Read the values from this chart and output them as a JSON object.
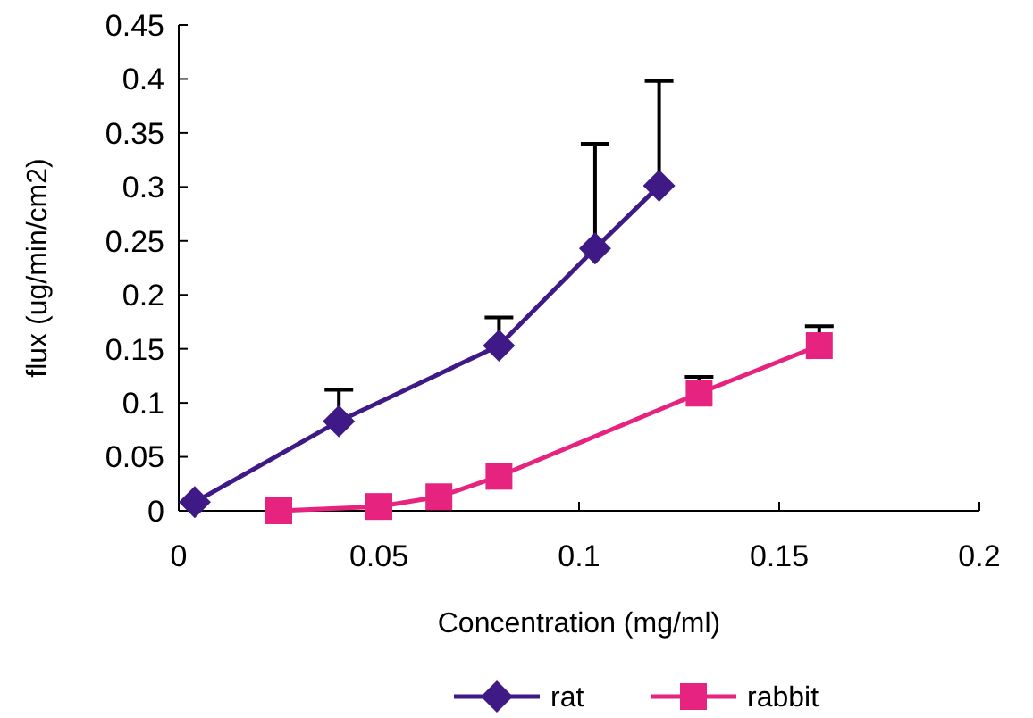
{
  "chart_data": {
    "type": "line",
    "xlabel": "Concentration (mg/ml)",
    "ylabel": "flux (ug/min/cm2)",
    "xlim": [
      0,
      0.2
    ],
    "xticks": [
      0,
      0.05,
      0.1,
      0.15,
      0.2
    ],
    "ylim": [
      0,
      0.45
    ],
    "yticks": [
      0,
      0.05,
      0.1,
      0.15,
      0.2,
      0.25,
      0.3,
      0.35,
      0.4,
      0.45
    ],
    "grid": false,
    "legend": "bottom",
    "series": [
      {
        "name": "rat",
        "color": "#3f1a86",
        "marker": "diamond",
        "x": [
          0.004,
          0.04,
          0.08,
          0.104,
          0.12
        ],
        "values": [
          0.008,
          0.083,
          0.153,
          0.243,
          0.301
        ],
        "errors": [
          null,
          [
            0.083,
            0.112
          ],
          [
            0.153,
            0.179
          ],
          [
            0.243,
            0.34
          ],
          [
            0.301,
            0.398
          ]
        ]
      },
      {
        "name": "rabbit",
        "color": "#e6247f",
        "marker": "square",
        "x": [
          0.025,
          0.05,
          0.065,
          0.08,
          0.13,
          0.16
        ],
        "values": [
          0,
          0.004,
          0.013,
          0.032,
          0.109,
          0.153
        ],
        "errors": [
          null,
          null,
          null,
          null,
          [
            0.109,
            0.124
          ],
          [
            0.153,
            0.171
          ]
        ]
      }
    ]
  }
}
